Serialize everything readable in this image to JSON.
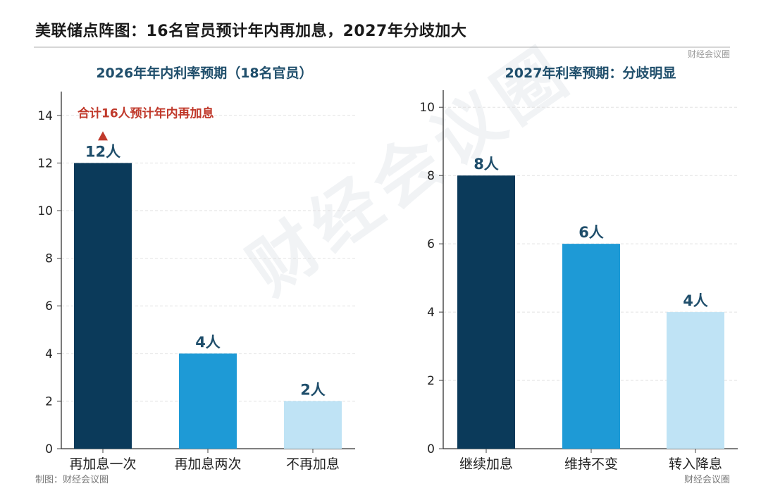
{
  "header": {
    "title": "美联储点阵图：16名官员预计年内再加息，2027年分歧加大",
    "brand": "财经会议圈"
  },
  "footer": {
    "credit": "制图：财经会议圈",
    "brand": "财经会议圈"
  },
  "watermark": "财经会议圈",
  "colors": {
    "dark": "#0b3a5a",
    "mid": "#1e9ad6",
    "light": "#bfe3f5",
    "title": "#1f4e6b",
    "annotation": "#c0392b"
  },
  "chart_data": [
    {
      "type": "bar",
      "title": "2026年年内利率预期（18名官员）",
      "categories": [
        "再加息一次",
        "再加息两次",
        "不再加息"
      ],
      "values": [
        12,
        4,
        2
      ],
      "value_labels": [
        "12人",
        "4人",
        "2人"
      ],
      "ylim": [
        0,
        15
      ],
      "yticks": [
        0,
        2,
        4,
        6,
        8,
        10,
        12,
        14
      ],
      "grid": true,
      "annotation": {
        "text": "合计16人预计年内再加息",
        "marker": "triangle-up",
        "target_category": "再加息一次"
      }
    },
    {
      "type": "bar",
      "title": "2027年利率预期：分歧明显",
      "categories": [
        "继续加息",
        "维持不变",
        "转入降息"
      ],
      "values": [
        8,
        6,
        4
      ],
      "value_labels": [
        "8人",
        "6人",
        "4人"
      ],
      "ylim": [
        0,
        10.5
      ],
      "yticks": [
        0,
        2,
        4,
        6,
        8,
        10
      ],
      "grid": true
    }
  ]
}
